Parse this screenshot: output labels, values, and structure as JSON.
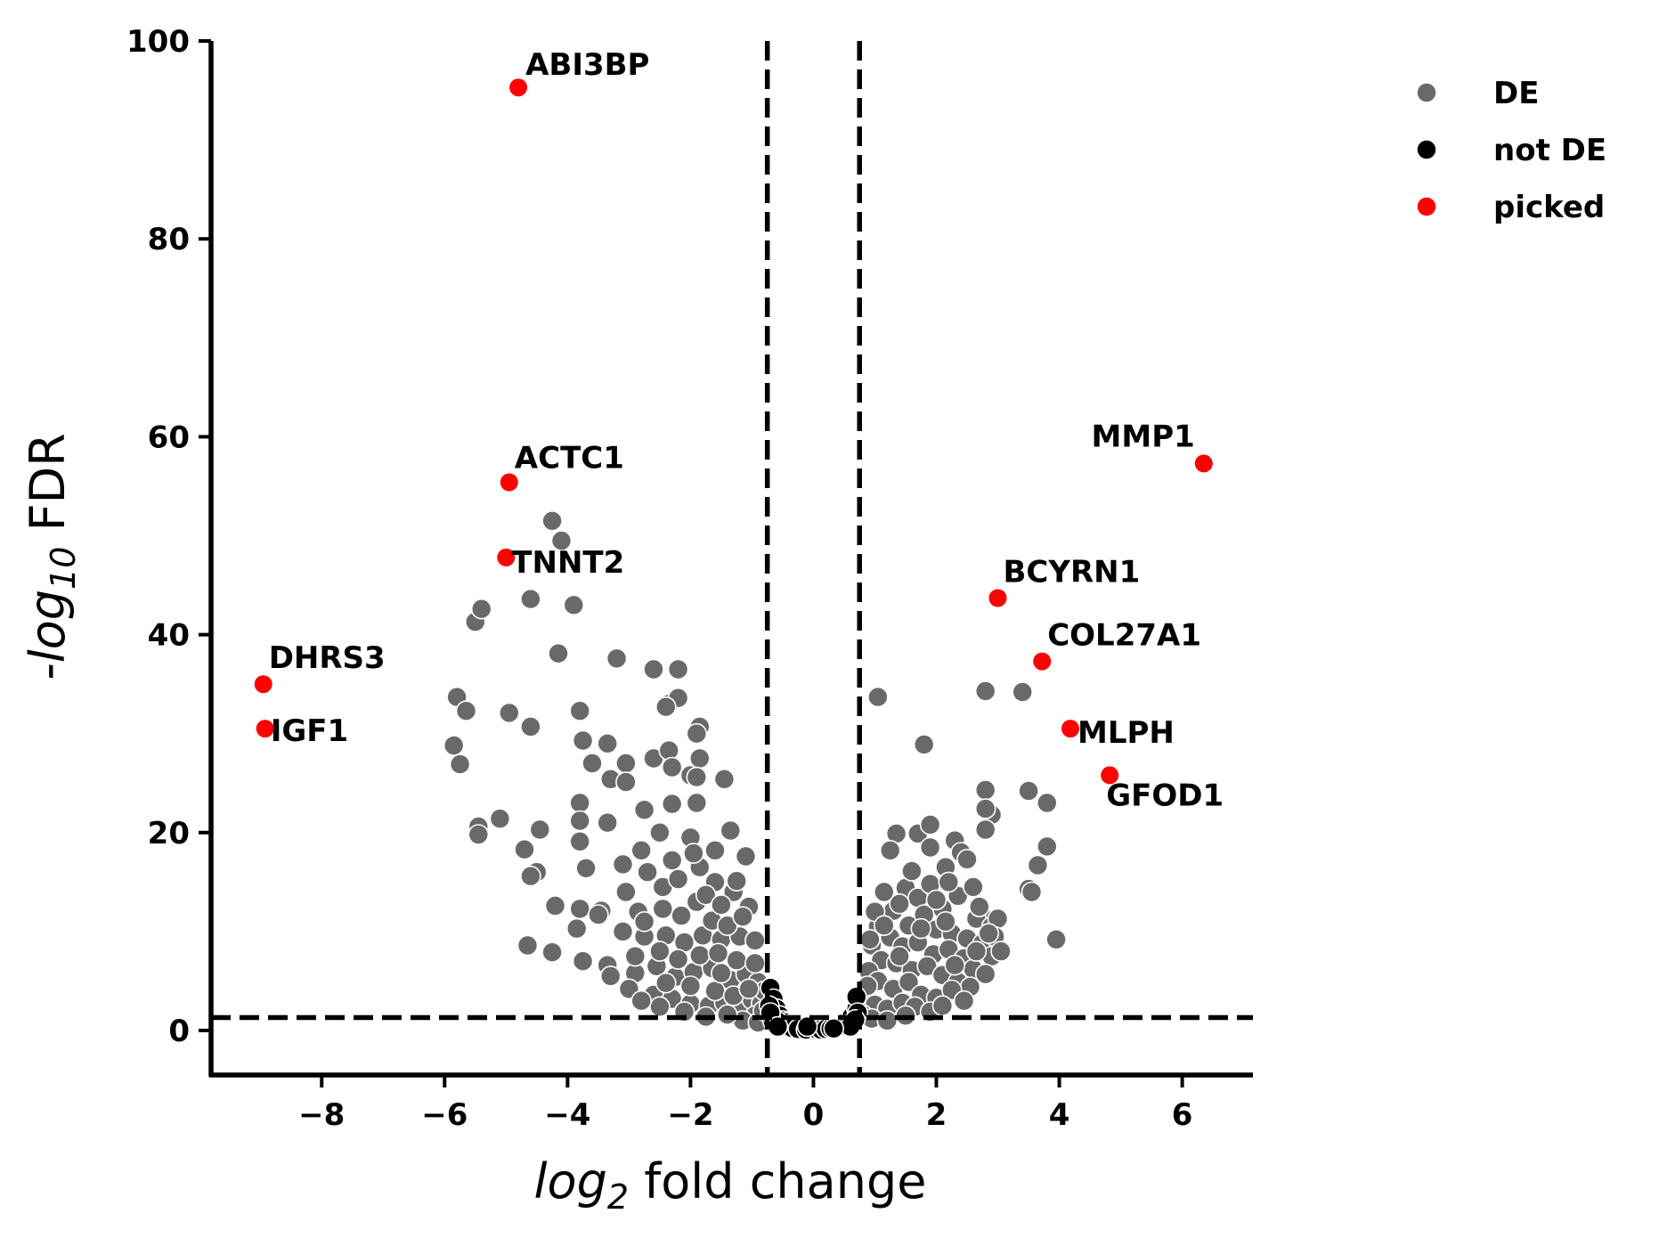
{
  "chart_data": {
    "type": "scatter",
    "title": "",
    "xlabel_parts": [
      "log",
      "2",
      " fold change"
    ],
    "ylabel_parts": [
      "-log",
      "10",
      " FDR"
    ],
    "xlim": [
      -9.8,
      7.15
    ],
    "ylim": [
      -4.5,
      100
    ],
    "xticks": [
      {
        "value": -8,
        "label": "−8"
      },
      {
        "value": -6,
        "label": "−6"
      },
      {
        "value": -4,
        "label": "−4"
      },
      {
        "value": -2,
        "label": "−2"
      },
      {
        "value": 0,
        "label": "0"
      },
      {
        "value": 2,
        "label": "2"
      },
      {
        "value": 4,
        "label": "4"
      },
      {
        "value": 6,
        "label": "6"
      }
    ],
    "yticks": [
      {
        "value": 0,
        "label": "0"
      },
      {
        "value": 20,
        "label": "20"
      },
      {
        "value": 40,
        "label": "40"
      },
      {
        "value": 60,
        "label": "60"
      },
      {
        "value": 80,
        "label": "80"
      },
      {
        "value": 100,
        "label": "100"
      }
    ],
    "thresholds": {
      "fold_change_x": [
        -0.75,
        0.75
      ],
      "fdr_y": 1.3
    },
    "grid": false,
    "legend_position": "top-right, outside plot",
    "legend": [
      {
        "label": "DE",
        "color": "#696969"
      },
      {
        "label": "not DE",
        "color": "#000000"
      },
      {
        "label": "picked",
        "color": "#ff0000"
      }
    ],
    "series": [
      {
        "name": "picked",
        "color": "#ff0000",
        "points": [
          {
            "gene": "ABI3BP",
            "x": -4.8,
            "y": 95.3
          },
          {
            "gene": "ACTC1",
            "x": -4.95,
            "y": 55.4
          },
          {
            "gene": "TNNT2",
            "x": -5.0,
            "y": 47.8
          },
          {
            "gene": "DHRS3",
            "x": -8.95,
            "y": 35.0
          },
          {
            "gene": "IGF1",
            "x": -8.92,
            "y": 30.5
          },
          {
            "gene": "MMP1",
            "x": 6.35,
            "y": 57.3
          },
          {
            "gene": "BCYRN1",
            "x": 3.0,
            "y": 43.7
          },
          {
            "gene": "COL27A1",
            "x": 3.72,
            "y": 37.3
          },
          {
            "gene": "MLPH",
            "x": 4.18,
            "y": 30.5
          },
          {
            "gene": "GFOD1",
            "x": 4.82,
            "y": 25.8
          }
        ]
      },
      {
        "name": "DE",
        "color": "#696969",
        "points": [
          [
            -4.25,
            51.5
          ],
          [
            -4.1,
            49.5
          ],
          [
            -3.9,
            43
          ],
          [
            -4.6,
            43.6
          ],
          [
            -5.5,
            41.3
          ],
          [
            -5.4,
            42.6
          ],
          [
            -4.15,
            38.1
          ],
          [
            -3.2,
            37.6
          ],
          [
            -2.6,
            36.5
          ],
          [
            -2.2,
            36.5
          ],
          [
            -2.35,
            33
          ],
          [
            -2.2,
            33.6
          ],
          [
            -2.4,
            32.7
          ],
          [
            -5.8,
            33.7
          ],
          [
            -5.65,
            32.3
          ],
          [
            -4.95,
            32.1
          ],
          [
            -3.8,
            32.3
          ],
          [
            -4.6,
            30.7
          ],
          [
            -1.85,
            30.7
          ],
          [
            -1.9,
            30
          ],
          [
            -5.85,
            28.8
          ],
          [
            -5.75,
            26.9
          ],
          [
            -3.75,
            29.3
          ],
          [
            -3.35,
            29
          ],
          [
            -3.05,
            27
          ],
          [
            -3.3,
            25.4
          ],
          [
            -3.05,
            25.1
          ],
          [
            -2.6,
            27.5
          ],
          [
            -2.35,
            28.3
          ],
          [
            -2.3,
            26.6
          ],
          [
            -2.0,
            25.8
          ],
          [
            -1.85,
            27.5
          ],
          [
            -1.9,
            25.6
          ],
          [
            -1.45,
            25.4
          ],
          [
            -3.6,
            27
          ],
          [
            -3.8,
            23
          ],
          [
            -3.8,
            21.2
          ],
          [
            -5.45,
            20.6
          ],
          [
            -5.45,
            19.8
          ],
          [
            -5.1,
            21.4
          ],
          [
            -4.45,
            20.3
          ],
          [
            -3.8,
            19.1
          ],
          [
            -4.7,
            18.3
          ],
          [
            -4.5,
            16
          ],
          [
            -4.6,
            15.6
          ],
          [
            -3.7,
            16.4
          ],
          [
            -3.35,
            21
          ],
          [
            -2.75,
            22.3
          ],
          [
            -2.3,
            22.9
          ],
          [
            -1.9,
            23
          ],
          [
            -1.35,
            20.2
          ],
          [
            -2.5,
            20
          ],
          [
            -2.0,
            19.5
          ],
          [
            -2.8,
            18.2
          ],
          [
            -1.6,
            18.2
          ],
          [
            -1.1,
            17.6
          ],
          [
            -4.2,
            12.6
          ],
          [
            -3.8,
            12.3
          ],
          [
            -3.45,
            12.1
          ],
          [
            -3.05,
            14
          ],
          [
            -3.1,
            16.8
          ],
          [
            -3.85,
            10.3
          ],
          [
            -3.5,
            11.7
          ],
          [
            -2.85,
            12
          ],
          [
            -2.45,
            14.5
          ],
          [
            -2.2,
            15.3
          ],
          [
            -1.85,
            16.5
          ],
          [
            -1.6,
            15
          ],
          [
            -1.3,
            14
          ],
          [
            -1.05,
            12.5
          ],
          [
            -4.65,
            8.6
          ],
          [
            -4.25,
            7.9
          ],
          [
            -3.75,
            7
          ],
          [
            -3.35,
            6.6
          ],
          [
            -3.1,
            10
          ],
          [
            -2.75,
            9.5
          ],
          [
            -2.4,
            9.6
          ],
          [
            -2.1,
            8.9
          ],
          [
            -1.8,
            9.6
          ],
          [
            -1.5,
            9.2
          ],
          [
            -1.2,
            9.5
          ],
          [
            -0.95,
            9.1
          ],
          [
            -2.9,
            5.8
          ],
          [
            -2.55,
            6.5
          ],
          [
            -2.25,
            5.4
          ],
          [
            -1.95,
            5.9
          ],
          [
            -1.65,
            6.3
          ],
          [
            -1.35,
            5.1
          ],
          [
            -1.1,
            5.7
          ],
          [
            -0.9,
            4.9
          ],
          [
            -3.0,
            4.2
          ],
          [
            -2.6,
            3.6
          ],
          [
            -2.3,
            3.2
          ],
          [
            -2.0,
            2.7
          ],
          [
            -1.7,
            2.5
          ],
          [
            -1.45,
            2.8
          ],
          [
            -1.2,
            2.2
          ],
          [
            -1.0,
            3.1
          ],
          [
            -0.85,
            2.7
          ],
          [
            -2.75,
            11
          ],
          [
            -2.45,
            12.3
          ],
          [
            -2.15,
            11.6
          ],
          [
            -1.9,
            13
          ],
          [
            -1.65,
            11.1
          ],
          [
            -1.4,
            10.6
          ],
          [
            -1.15,
            11.5
          ],
          [
            -2.7,
            16
          ],
          [
            -2.3,
            17.2
          ],
          [
            -1.95,
            17.9
          ],
          [
            -1.75,
            13.7
          ],
          [
            -1.5,
            12.7
          ],
          [
            -1.25,
            15.1
          ],
          [
            -3.3,
            5.5
          ],
          [
            -2.9,
            7.5
          ],
          [
            -2.5,
            8
          ],
          [
            -2.2,
            7.2
          ],
          [
            -1.85,
            7.6
          ],
          [
            -1.55,
            7.8
          ],
          [
            -1.25,
            7.1
          ],
          [
            -0.95,
            6.8
          ],
          [
            -0.8,
            4.0
          ],
          [
            -1.6,
            4.0
          ],
          [
            -2.0,
            4.5
          ],
          [
            -2.4,
            4.8
          ],
          [
            -1.3,
            3.5
          ],
          [
            -0.95,
            1.5
          ],
          [
            -1.15,
            1.0
          ],
          [
            -0.9,
            0.8
          ],
          [
            -1.4,
            1.6
          ],
          [
            -1.75,
            1.4
          ],
          [
            -2.1,
            1.9
          ],
          [
            -2.5,
            2.4
          ],
          [
            -2.8,
            3.0
          ],
          [
            -0.82,
            2.0
          ],
          [
            -1.05,
            4.2
          ],
          [
            -1.5,
            5.8
          ],
          [
            1.05,
            33.7
          ],
          [
            1.8,
            28.9
          ],
          [
            2.8,
            34.3
          ],
          [
            3.4,
            34.2
          ],
          [
            2.8,
            24.3
          ],
          [
            2.9,
            21.8
          ],
          [
            2.8,
            22.4
          ],
          [
            3.5,
            24.2
          ],
          [
            3.8,
            23
          ],
          [
            2.8,
            20.3
          ],
          [
            3.8,
            18.6
          ],
          [
            3.65,
            16.7
          ],
          [
            3.5,
            14.3
          ],
          [
            3.55,
            14
          ],
          [
            3.95,
            9.2
          ],
          [
            1.35,
            19.9
          ],
          [
            1.7,
            19.9
          ],
          [
            1.9,
            20.8
          ],
          [
            1.25,
            18.2
          ],
          [
            1.9,
            18.5
          ],
          [
            2.3,
            19.2
          ],
          [
            2.4,
            18
          ],
          [
            2.5,
            17.3
          ],
          [
            2.15,
            16.5
          ],
          [
            1.5,
            14.4
          ],
          [
            1.7,
            13.4
          ],
          [
            1.9,
            14.8
          ],
          [
            2.1,
            12.3
          ],
          [
            2.35,
            13.6
          ],
          [
            2.6,
            14.5
          ],
          [
            2.8,
            11.2
          ],
          [
            2.65,
            11.3
          ],
          [
            2.9,
            10.5
          ],
          [
            3.0,
            11.3
          ],
          [
            1.15,
            14
          ],
          [
            1.3,
            12.1
          ],
          [
            1.55,
            10.6
          ],
          [
            1.8,
            11.7
          ],
          [
            2.0,
            10.2
          ],
          [
            2.25,
            9.8
          ],
          [
            2.5,
            9.3
          ],
          [
            2.75,
            8.8
          ],
          [
            2.9,
            7.5
          ],
          [
            1.05,
            10.5
          ],
          [
            1.25,
            9.4
          ],
          [
            1.45,
            8.5
          ],
          [
            1.7,
            8.9
          ],
          [
            1.95,
            7.7
          ],
          [
            2.2,
            8.2
          ],
          [
            2.45,
            7.3
          ],
          [
            2.6,
            6.2
          ],
          [
            2.8,
            5.7
          ],
          [
            0.95,
            8.6
          ],
          [
            1.1,
            7.1
          ],
          [
            1.35,
            6.8
          ],
          [
            1.6,
            6.1
          ],
          [
            1.85,
            6.5
          ],
          [
            2.1,
            5.6
          ],
          [
            2.35,
            4.9
          ],
          [
            2.55,
            4.4
          ],
          [
            0.9,
            6.0
          ],
          [
            1.05,
            5.0
          ],
          [
            1.3,
            4.2
          ],
          [
            1.55,
            4.9
          ],
          [
            1.75,
            3.6
          ],
          [
            2.0,
            3.3
          ],
          [
            2.25,
            4.1
          ],
          [
            2.45,
            3.0
          ],
          [
            0.85,
            3.5
          ],
          [
            1.0,
            2.6
          ],
          [
            1.2,
            2.2
          ],
          [
            1.45,
            2.8
          ],
          [
            1.65,
            2.4
          ],
          [
            1.9,
            1.9
          ],
          [
            2.1,
            2.5
          ],
          [
            0.8,
            1.6
          ],
          [
            0.95,
            1.2
          ],
          [
            1.2,
            1.0
          ],
          [
            1.5,
            1.5
          ],
          [
            0.88,
            4.5
          ],
          [
            1.4,
            12.8
          ],
          [
            2.0,
            13.2
          ],
          [
            2.2,
            15.0
          ],
          [
            1.6,
            16.1
          ],
          [
            2.7,
            12.5
          ],
          [
            2.95,
            9.5
          ],
          [
            3.05,
            8.0
          ],
          [
            2.15,
            11.0
          ],
          [
            1.0,
            12.0
          ],
          [
            1.15,
            10.6
          ],
          [
            1.4,
            7.5
          ],
          [
            2.3,
            6.6
          ],
          [
            2.65,
            8.0
          ],
          [
            2.85,
            9.8
          ],
          [
            0.92,
            9.2
          ],
          [
            1.75,
            10.3
          ]
        ]
      },
      {
        "name": "not DE",
        "color": "#000000",
        "points": [
          [
            -0.7,
            4.3
          ],
          [
            -0.65,
            3.2
          ],
          [
            -0.6,
            2.2
          ],
          [
            -0.55,
            1.5
          ],
          [
            -0.5,
            1.0
          ],
          [
            -0.45,
            0.8
          ],
          [
            -0.38,
            0.6
          ],
          [
            -0.3,
            0.5
          ],
          [
            -0.22,
            0.3
          ],
          [
            -0.15,
            0.2
          ],
          [
            -0.08,
            0.1
          ],
          [
            0.0,
            0.05
          ],
          [
            0.08,
            0.1
          ],
          [
            0.15,
            0.2
          ],
          [
            0.22,
            0.3
          ],
          [
            0.3,
            0.35
          ],
          [
            0.38,
            0.45
          ],
          [
            0.46,
            0.6
          ],
          [
            0.54,
            0.9
          ],
          [
            0.62,
            1.4
          ],
          [
            0.7,
            2.2
          ],
          [
            0.7,
            3.4
          ],
          [
            0.72,
            1.8
          ],
          [
            -0.72,
            2.5
          ],
          [
            -0.68,
            1.3
          ],
          [
            -0.62,
            0.6
          ],
          [
            -0.58,
            0.9
          ],
          [
            -0.52,
            0.4
          ],
          [
            -0.42,
            0.35
          ],
          [
            -0.35,
            0.25
          ],
          [
            -0.25,
            0.15
          ],
          [
            -0.12,
            0.08
          ],
          [
            0.05,
            0.12
          ],
          [
            0.12,
            0.08
          ],
          [
            0.2,
            0.15
          ],
          [
            0.28,
            0.2
          ],
          [
            0.35,
            0.3
          ],
          [
            0.42,
            0.35
          ],
          [
            0.5,
            0.5
          ],
          [
            0.58,
            0.6
          ],
          [
            0.65,
            0.8
          ],
          [
            0.68,
            1.1
          ],
          [
            -0.66,
            0.9
          ],
          [
            -0.7,
            1.8
          ],
          [
            -0.58,
            0.4
          ],
          [
            0.6,
            0.4
          ],
          [
            -0.1,
            0.4
          ],
          [
            0.33,
            0.2
          ]
        ]
      }
    ]
  }
}
